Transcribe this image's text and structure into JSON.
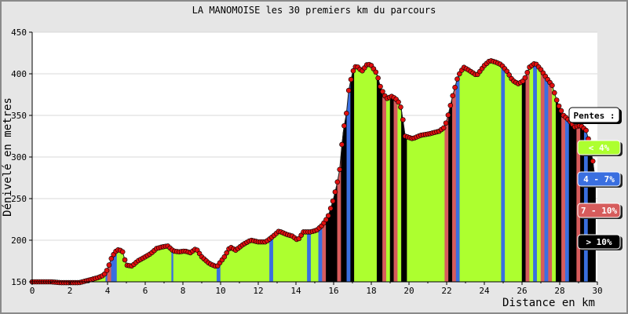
{
  "chart_data": {
    "type": "area",
    "title": "LA MANOMOISE les 30 premiers km du parcours",
    "xlabel": "Distance en km",
    "ylabel": "Dénivelé en metres",
    "xlim": [
      0,
      30
    ],
    "ylim": [
      150,
      450
    ],
    "x_ticks": [
      0,
      2,
      4,
      6,
      8,
      10,
      12,
      14,
      16,
      18,
      20,
      22,
      24,
      26,
      28,
      30
    ],
    "y_ticks": [
      150,
      200,
      250,
      300,
      350,
      400,
      450
    ],
    "grid": "horizontal",
    "legend_position": "right",
    "legend": {
      "title": "Pentes :",
      "entries": [
        {
          "label": "< 4%",
          "color": "#adff2f",
          "text_color": "#ffffff"
        },
        {
          "label": "4 - 7%",
          "color": "#3a6fe0",
          "text_color": "#ffffff"
        },
        {
          "label": "7 - 10%",
          "color": "#d65c5c",
          "text_color": "#ffffff"
        },
        {
          "label": "> 10%",
          "color": "#000000",
          "text_color": "#ffffff"
        }
      ]
    },
    "profile": [
      [
        0,
        150
      ],
      [
        0.5,
        150
      ],
      [
        1,
        150
      ],
      [
        1.5,
        149
      ],
      [
        2,
        149
      ],
      [
        2.5,
        149
      ],
      [
        3,
        152
      ],
      [
        3.5,
        155
      ],
      [
        3.8,
        158
      ],
      [
        4,
        165
      ],
      [
        4.2,
        178
      ],
      [
        4.4,
        186
      ],
      [
        4.6,
        189
      ],
      [
        4.8,
        186
      ],
      [
        5,
        170
      ],
      [
        5.3,
        169
      ],
      [
        5.6,
        175
      ],
      [
        6,
        180
      ],
      [
        6.3,
        184
      ],
      [
        6.6,
        190
      ],
      [
        6.9,
        192
      ],
      [
        7.2,
        193
      ],
      [
        7.5,
        187
      ],
      [
        7.8,
        186
      ],
      [
        8.1,
        187
      ],
      [
        8.4,
        185
      ],
      [
        8.7,
        190
      ],
      [
        9,
        180
      ],
      [
        9.4,
        172
      ],
      [
        9.8,
        168
      ],
      [
        10.2,
        180
      ],
      [
        10.5,
        192
      ],
      [
        10.8,
        188
      ],
      [
        11.2,
        195
      ],
      [
        11.6,
        200
      ],
      [
        12,
        198
      ],
      [
        12.4,
        198
      ],
      [
        12.8,
        205
      ],
      [
        13.1,
        211
      ],
      [
        13.5,
        207
      ],
      [
        13.8,
        205
      ],
      [
        14.1,
        200
      ],
      [
        14.4,
        210
      ],
      [
        14.8,
        210
      ],
      [
        15.1,
        212
      ],
      [
        15.4,
        218
      ],
      [
        15.7,
        228
      ],
      [
        16,
        250
      ],
      [
        16.3,
        280
      ],
      [
        16.5,
        330
      ],
      [
        16.7,
        355
      ],
      [
        16.8,
        380
      ],
      [
        17,
        402
      ],
      [
        17.2,
        410
      ],
      [
        17.5,
        403
      ],
      [
        17.8,
        412
      ],
      [
        18,
        410
      ],
      [
        18.3,
        400
      ],
      [
        18.5,
        383
      ],
      [
        18.8,
        370
      ],
      [
        19.1,
        373
      ],
      [
        19.4,
        368
      ],
      [
        19.6,
        358
      ],
      [
        19.8,
        325
      ],
      [
        20.2,
        322
      ],
      [
        20.6,
        326
      ],
      [
        21.1,
        328
      ],
      [
        21.6,
        331
      ],
      [
        21.9,
        336
      ],
      [
        22.1,
        352
      ],
      [
        22.3,
        372
      ],
      [
        22.6,
        397
      ],
      [
        22.9,
        408
      ],
      [
        23.2,
        404
      ],
      [
        23.6,
        398
      ],
      [
        24,
        410
      ],
      [
        24.3,
        416
      ],
      [
        24.6,
        414
      ],
      [
        24.9,
        411
      ],
      [
        25.2,
        403
      ],
      [
        25.5,
        392
      ],
      [
        25.8,
        388
      ],
      [
        26.1,
        392
      ],
      [
        26.4,
        408
      ],
      [
        26.7,
        413
      ],
      [
        27,
        405
      ],
      [
        27.3,
        395
      ],
      [
        27.6,
        386
      ],
      [
        27.9,
        364
      ],
      [
        28.2,
        350
      ],
      [
        28.5,
        344
      ],
      [
        28.8,
        336
      ],
      [
        29.1,
        338
      ],
      [
        29.4,
        332
      ],
      [
        29.6,
        315
      ],
      [
        29.8,
        290
      ],
      [
        29.9,
        268
      ]
    ],
    "slopes": [
      [
        0,
        3.9,
        0
      ],
      [
        3.9,
        4.0,
        1
      ],
      [
        4.0,
        4.2,
        2
      ],
      [
        4.2,
        4.5,
        1
      ],
      [
        4.5,
        5.0,
        0
      ],
      [
        5.0,
        7.4,
        0
      ],
      [
        7.4,
        7.5,
        1
      ],
      [
        7.5,
        9.8,
        0
      ],
      [
        9.8,
        10.0,
        1
      ],
      [
        10.0,
        12.6,
        0
      ],
      [
        12.6,
        12.8,
        1
      ],
      [
        12.8,
        14.6,
        0
      ],
      [
        14.6,
        14.8,
        1
      ],
      [
        14.8,
        15.2,
        0
      ],
      [
        15.2,
        15.4,
        1
      ],
      [
        15.4,
        15.6,
        2
      ],
      [
        15.6,
        16.2,
        3
      ],
      [
        16.2,
        16.4,
        2
      ],
      [
        16.4,
        16.7,
        3
      ],
      [
        16.7,
        16.9,
        1
      ],
      [
        16.9,
        17.1,
        3
      ],
      [
        17.1,
        18.3,
        0
      ],
      [
        18.3,
        18.6,
        3
      ],
      [
        18.6,
        18.8,
        2
      ],
      [
        18.8,
        19.0,
        0
      ],
      [
        19.0,
        19.2,
        3
      ],
      [
        19.2,
        19.4,
        2
      ],
      [
        19.4,
        19.6,
        0
      ],
      [
        19.6,
        19.9,
        3
      ],
      [
        19.9,
        21.9,
        0
      ],
      [
        21.9,
        22.1,
        2
      ],
      [
        22.1,
        22.3,
        3
      ],
      [
        22.3,
        22.5,
        2
      ],
      [
        22.5,
        22.7,
        1
      ],
      [
        22.7,
        24.9,
        0
      ],
      [
        24.9,
        25.1,
        1
      ],
      [
        25.1,
        26.0,
        0
      ],
      [
        26.0,
        26.2,
        3
      ],
      [
        26.2,
        26.4,
        2
      ],
      [
        26.4,
        26.6,
        0
      ],
      [
        26.6,
        26.8,
        1
      ],
      [
        26.8,
        27.0,
        0
      ],
      [
        27.0,
        27.2,
        2
      ],
      [
        27.2,
        27.4,
        1
      ],
      [
        27.4,
        27.6,
        2
      ],
      [
        27.6,
        27.8,
        0
      ],
      [
        27.8,
        28.1,
        3
      ],
      [
        28.1,
        28.3,
        2
      ],
      [
        28.3,
        28.5,
        1
      ],
      [
        28.5,
        28.9,
        3
      ],
      [
        28.9,
        29.1,
        2
      ],
      [
        29.1,
        29.3,
        3
      ],
      [
        29.3,
        29.5,
        1
      ],
      [
        29.5,
        29.9,
        3
      ]
    ]
  }
}
